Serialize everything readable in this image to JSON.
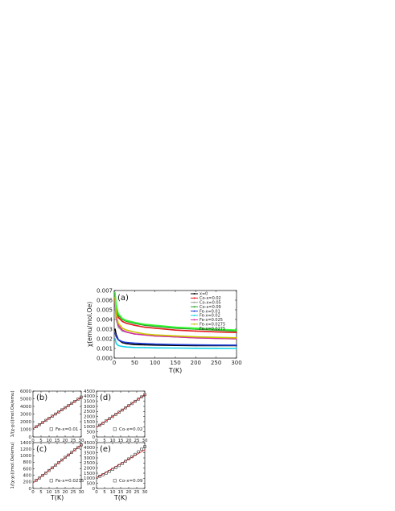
{
  "chart_data": [
    {
      "id": "a",
      "type": "line",
      "panel_label": "(a)",
      "xlabel": "T(K)",
      "ylabel": "χ(emu/mol.Oe)",
      "xlim": [
        0,
        300
      ],
      "ylim": [
        0,
        0.007
      ],
      "xticks": [
        "0",
        "50",
        "100",
        "150",
        "200",
        "250",
        "300"
      ],
      "yticks": [
        "0.000",
        "0.001",
        "0.002",
        "0.003",
        "0.004",
        "0.005",
        "0.006",
        "0.007"
      ],
      "legend_position": "top-right",
      "series": [
        {
          "name": "x=0",
          "color": "#000000",
          "x": [
            2,
            5,
            10,
            20,
            30,
            50,
            75,
            100,
            150,
            200,
            250,
            300
          ],
          "y": [
            0.003,
            0.0024,
            0.0019,
            0.0016,
            0.0015,
            0.0014,
            0.00138,
            0.00135,
            0.00132,
            0.0013,
            0.0013,
            0.0013
          ]
        },
        {
          "name": "Co-x=0.02",
          "color": "#e41a1c",
          "x": [
            2,
            5,
            10,
            20,
            30,
            50,
            75,
            100,
            150,
            200,
            250,
            300
          ],
          "y": [
            0.0062,
            0.005,
            0.0042,
            0.0038,
            0.0036,
            0.0034,
            0.0032,
            0.0031,
            0.0029,
            0.0028,
            0.00272,
            0.00265
          ]
        },
        {
          "name": "Co-x=0.05",
          "color": "#9e9e9e",
          "x": [
            2,
            5,
            10,
            20,
            30,
            50,
            75,
            100,
            150,
            200,
            250,
            300
          ],
          "y": [
            0.0058,
            0.004,
            0.0032,
            0.0028,
            0.0027,
            0.0025,
            0.0024,
            0.0023,
            0.0022,
            0.0021,
            0.00205,
            0.002
          ]
        },
        {
          "name": "Co-x=0.09",
          "color": "#2ca02c",
          "x": [
            2,
            5,
            10,
            20,
            30,
            50,
            75,
            100,
            150,
            200,
            250,
            300
          ],
          "y": [
            0.0064,
            0.0052,
            0.0044,
            0.004,
            0.0038,
            0.0036,
            0.0034,
            0.0033,
            0.0031,
            0.003,
            0.0029,
            0.0028
          ]
        },
        {
          "name": "Fe-x=0.01",
          "color": "#1f3fd8",
          "x": [
            2,
            5,
            10,
            20,
            30,
            50,
            75,
            100,
            150,
            200,
            250,
            300
          ],
          "y": [
            0.0026,
            0.0022,
            0.0019,
            0.0017,
            0.00162,
            0.00155,
            0.0015,
            0.00145,
            0.0014,
            0.00137,
            0.00135,
            0.00134
          ]
        },
        {
          "name": "Fe-x=0.02",
          "color": "#17d4e8",
          "x": [
            2,
            5,
            10,
            20,
            30,
            50,
            75,
            100,
            150,
            200,
            250,
            300
          ],
          "y": [
            0.002,
            0.0015,
            0.0013,
            0.0012,
            0.00115,
            0.0011,
            0.00108,
            0.00106,
            0.00104,
            0.00102,
            0.00101,
            0.001
          ]
        },
        {
          "name": "Fe-x=0.025",
          "color": "#d62aa5",
          "x": [
            2,
            5,
            10,
            20,
            30,
            50,
            75,
            100,
            150,
            200,
            250,
            300
          ],
          "y": [
            0.006,
            0.0042,
            0.0034,
            0.0029,
            0.0027,
            0.0025,
            0.0024,
            0.0023,
            0.0022,
            0.0021,
            0.00205,
            0.002
          ]
        },
        {
          "name": "Fe-x=0.0275",
          "color": "#c8c800",
          "x": [
            2,
            5,
            10,
            20,
            30,
            50,
            75,
            100,
            150,
            200,
            250,
            300
          ],
          "y": [
            0.0063,
            0.0045,
            0.0036,
            0.0031,
            0.0029,
            0.0027,
            0.0025,
            0.0024,
            0.0023,
            0.0022,
            0.00215,
            0.0021
          ]
        },
        {
          "name": "Fe-x=0.0275",
          "color": "#33ff33",
          "x": [
            2,
            5,
            10,
            20,
            30,
            50,
            75,
            100,
            150,
            200,
            250,
            300
          ],
          "y": [
            0.0068,
            0.0055,
            0.0046,
            0.0041,
            0.0039,
            0.0037,
            0.0035,
            0.0034,
            0.0032,
            0.0031,
            0.003,
            0.0029
          ]
        }
      ]
    },
    {
      "id": "b",
      "type": "scatter",
      "panel_label": "(b)",
      "annotation": "Fe-x=0.01",
      "ylabel": "1/(χ-χ₀)(mol.Oe/emu)",
      "xlim": [
        0,
        30
      ],
      "ylim": [
        0,
        6500
      ],
      "xticks": [
        "0",
        "5",
        "10",
        "15",
        "20",
        "25",
        "30"
      ],
      "yticks": [
        "0",
        "1000",
        "2000",
        "3000",
        "4000",
        "5000",
        "6000"
      ],
      "data": {
        "x": [
          2,
          4,
          6,
          8,
          10,
          12,
          14,
          16,
          18,
          20,
          22,
          24,
          26,
          28,
          30
        ],
        "y": [
          1450,
          1750,
          2050,
          2350,
          2650,
          2950,
          3250,
          3550,
          3850,
          4150,
          4450,
          4750,
          5050,
          5350,
          5650
        ]
      },
      "fit": {
        "x": [
          0,
          30
        ],
        "y": [
          1150,
          5650
        ]
      }
    },
    {
      "id": "d",
      "type": "scatter",
      "panel_label": "(d)",
      "annotation": "Co-x=0.02",
      "ylabel": "",
      "xlim": [
        0,
        30
      ],
      "ylim": [
        0,
        4500
      ],
      "xticks": [
        "0",
        "5",
        "10",
        "15",
        "20",
        "25",
        "30"
      ],
      "yticks": [
        "0",
        "500",
        "1000",
        "1500",
        "2000",
        "2500",
        "3000",
        "3500",
        "4000",
        "4500"
      ],
      "data": {
        "x": [
          2,
          4,
          6,
          8,
          10,
          12,
          14,
          16,
          18,
          20,
          22,
          24,
          26,
          28,
          30
        ],
        "y": [
          1150,
          1350,
          1580,
          1800,
          2010,
          2220,
          2430,
          2640,
          2860,
          3070,
          3280,
          3500,
          3710,
          3930,
          4150
        ]
      },
      "fit": {
        "x": [
          0,
          30
        ],
        "y": [
          950,
          4150
        ]
      }
    },
    {
      "id": "c",
      "type": "scatter",
      "panel_label": "(c)",
      "annotation": "Fe-x=0.0275",
      "ylabel": "1/(χ-χ₀)(mol.Oe/emu)",
      "xlabel": "T(K)",
      "xlim": [
        0,
        30
      ],
      "ylim": [
        0,
        1400
      ],
      "xticks": [
        "0",
        "5",
        "10",
        "15",
        "20",
        "25",
        "30"
      ],
      "yticks": [
        "0",
        "200",
        "400",
        "600",
        "800",
        "1000",
        "1200",
        "1400"
      ],
      "data": {
        "x": [
          2,
          4,
          6,
          8,
          10,
          12,
          14,
          16,
          18,
          20,
          22,
          24,
          26,
          28,
          30
        ],
        "y": [
          250,
          320,
          400,
          470,
          550,
          630,
          710,
          790,
          870,
          950,
          1020,
          1100,
          1180,
          1250,
          1330
        ]
      },
      "fit": {
        "x": [
          0,
          30
        ],
        "y": [
          170,
          1330
        ]
      }
    },
    {
      "id": "e",
      "type": "scatter",
      "panel_label": "(e)",
      "annotation": "Co-x=0.09",
      "ylabel": "",
      "xlabel": "T(K)",
      "xlim": [
        0,
        30
      ],
      "ylim": [
        0,
        4500
      ],
      "xticks": [
        "0",
        "5",
        "10",
        "15",
        "20",
        "25",
        "30"
      ],
      "yticks": [
        "0",
        "500",
        "1000",
        "1500",
        "2000",
        "2500",
        "3000",
        "3500",
        "4000",
        "4500"
      ],
      "data": {
        "x": [
          2,
          4,
          6,
          8,
          10,
          12,
          14,
          16,
          18,
          20,
          22,
          24,
          26,
          28,
          30
        ],
        "y": [
          1200,
          1350,
          1500,
          1680,
          1870,
          2050,
          2250,
          2450,
          2670,
          2900,
          3120,
          3350,
          3600,
          3850,
          4100
        ]
      },
      "fit": {
        "x": [
          0,
          30
        ],
        "y": [
          1050,
          3800
        ]
      }
    }
  ]
}
